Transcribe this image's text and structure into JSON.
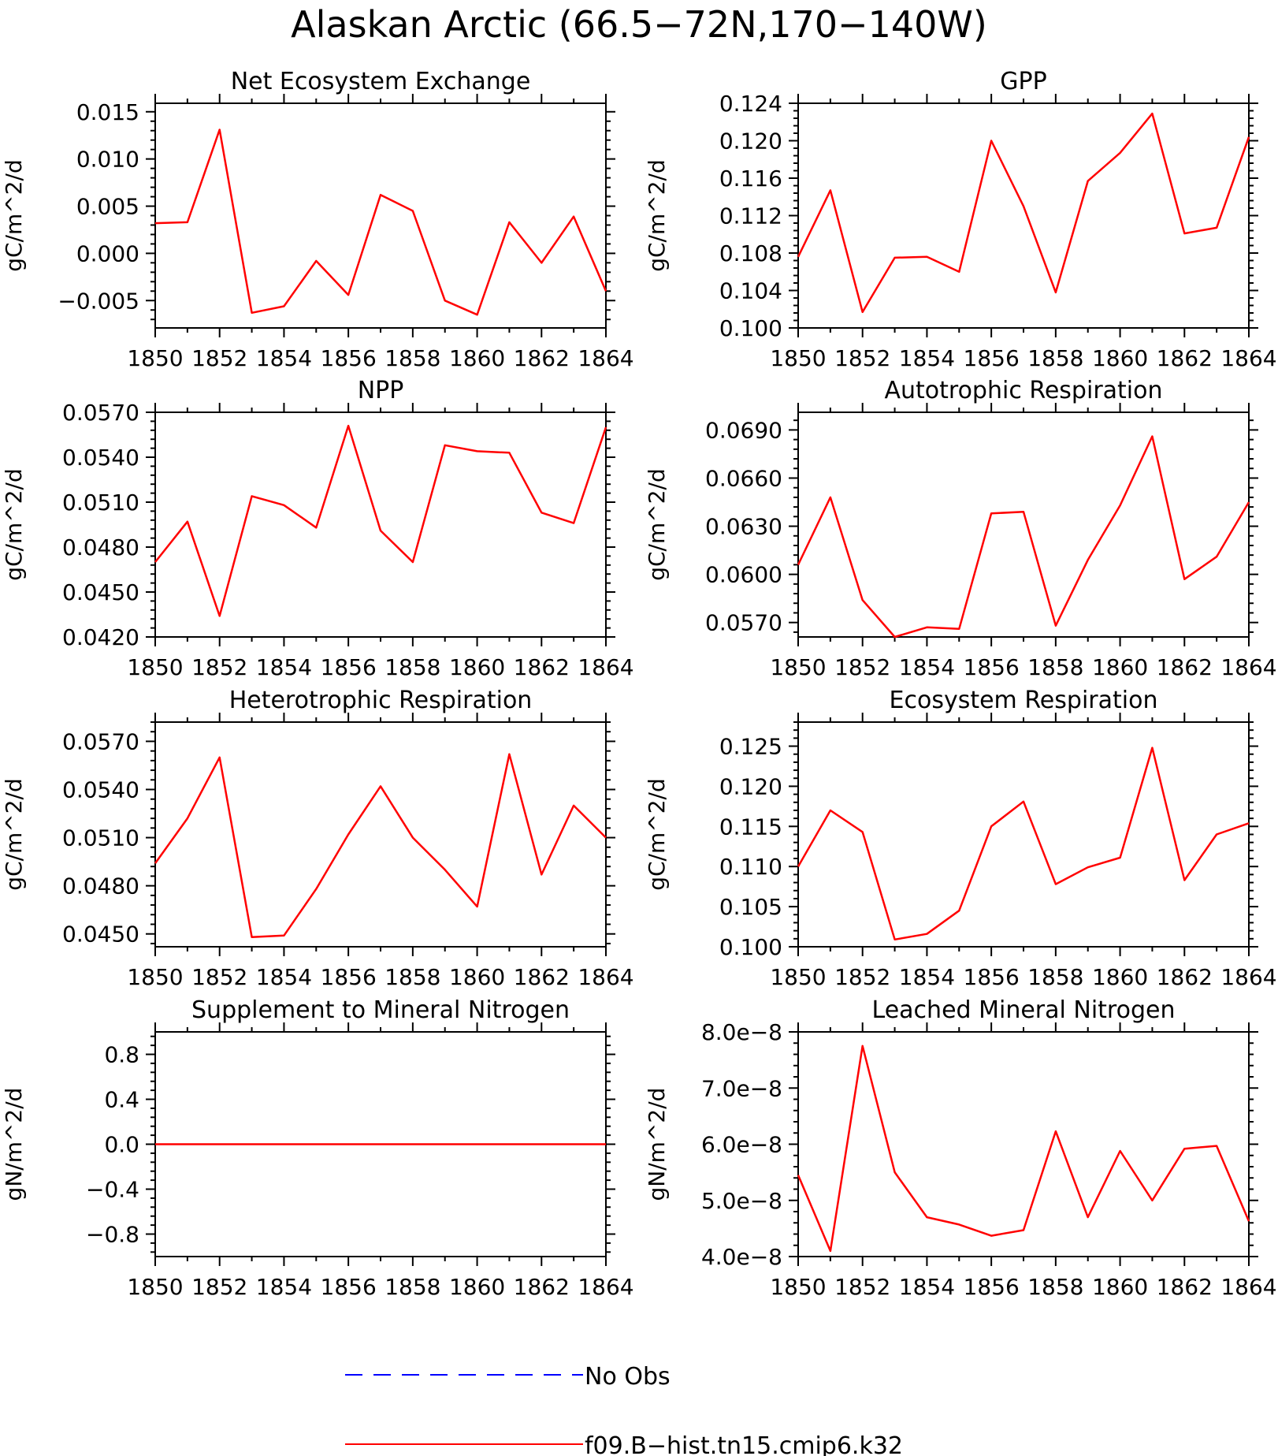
{
  "figure": {
    "title": "Alaskan Arctic (66.5−72N,170−140W)"
  },
  "legend": {
    "entries": [
      {
        "label": "No Obs",
        "color": "#0000ff",
        "dash": true
      },
      {
        "label": "f09.B−hist.tn15.cmip6.k32",
        "color": "#ff0000",
        "dash": false
      }
    ]
  },
  "series_color": "#ff0000",
  "chart_data": [
    {
      "type": "line",
      "title": "Net Ecosystem Exchange",
      "ylabel": "gC/m^2/d",
      "x": [
        1850,
        1851,
        1852,
        1853,
        1854,
        1855,
        1856,
        1857,
        1858,
        1859,
        1860,
        1861,
        1862,
        1863,
        1864
      ],
      "values": [
        0.0032,
        0.0033,
        0.0131,
        -0.0063,
        -0.0056,
        -0.0008,
        -0.0044,
        0.0062,
        0.0045,
        -0.005,
        -0.0065,
        0.0033,
        -0.001,
        0.0039,
        -0.004
      ],
      "xlim": [
        1850,
        1864
      ],
      "ylim": [
        -0.0079,
        0.0159
      ],
      "yticks": [
        -0.005,
        0.0,
        0.005,
        0.01,
        0.015
      ],
      "ytick_labels": [
        "−0.005",
        "0.000",
        "0.005",
        "0.010",
        "0.015"
      ],
      "xticks": [
        1850,
        1852,
        1854,
        1856,
        1858,
        1860,
        1862,
        1864
      ],
      "xtick_labels": [
        "1850",
        "1852",
        "1854",
        "1856",
        "1858",
        "1860",
        "1862",
        "1864"
      ]
    },
    {
      "type": "line",
      "title": "GPP",
      "ylabel": "gC/m^2/d",
      "x": [
        1850,
        1851,
        1852,
        1853,
        1854,
        1855,
        1856,
        1857,
        1858,
        1859,
        1860,
        1861,
        1862,
        1863,
        1864
      ],
      "values": [
        0.1076,
        0.1147,
        0.1017,
        0.1075,
        0.1076,
        0.106,
        0.12,
        0.113,
        0.1038,
        0.1157,
        0.1187,
        0.1229,
        0.1101,
        0.1107,
        0.1204
      ],
      "xlim": [
        1850,
        1864
      ],
      "ylim": [
        0.1,
        0.124
      ],
      "yticks": [
        0.1,
        0.104,
        0.108,
        0.112,
        0.116,
        0.12,
        0.124
      ],
      "ytick_labels": [
        "0.100",
        "0.104",
        "0.108",
        "0.112",
        "0.116",
        "0.120",
        "0.124"
      ],
      "xticks": [
        1850,
        1852,
        1854,
        1856,
        1858,
        1860,
        1862,
        1864
      ],
      "xtick_labels": [
        "1850",
        "1852",
        "1854",
        "1856",
        "1858",
        "1860",
        "1862",
        "1864"
      ]
    },
    {
      "type": "line",
      "title": "NPP",
      "ylabel": "gC/m^2/d",
      "x": [
        1850,
        1851,
        1852,
        1853,
        1854,
        1855,
        1856,
        1857,
        1858,
        1859,
        1860,
        1861,
        1862,
        1863,
        1864
      ],
      "values": [
        0.047,
        0.0497,
        0.0434,
        0.0514,
        0.0508,
        0.0493,
        0.0561,
        0.0491,
        0.047,
        0.0548,
        0.0544,
        0.0543,
        0.0503,
        0.0496,
        0.056
      ],
      "xlim": [
        1850,
        1864
      ],
      "ylim": [
        0.042,
        0.057
      ],
      "yticks": [
        0.042,
        0.045,
        0.048,
        0.051,
        0.054,
        0.057
      ],
      "ytick_labels": [
        "0.0420",
        "0.0450",
        "0.0480",
        "0.0510",
        "0.0540",
        "0.0570"
      ],
      "xticks": [
        1850,
        1852,
        1854,
        1856,
        1858,
        1860,
        1862,
        1864
      ],
      "xtick_labels": [
        "1850",
        "1852",
        "1854",
        "1856",
        "1858",
        "1860",
        "1862",
        "1864"
      ]
    },
    {
      "type": "line",
      "title": "Autotrophic Respiration",
      "ylabel": "gC/m^2/d",
      "x": [
        1850,
        1851,
        1852,
        1853,
        1854,
        1855,
        1856,
        1857,
        1858,
        1859,
        1860,
        1861,
        1862,
        1863,
        1864
      ],
      "values": [
        0.0606,
        0.0648,
        0.0584,
        0.0561,
        0.0567,
        0.0566,
        0.0638,
        0.0639,
        0.0568,
        0.0609,
        0.0643,
        0.0686,
        0.0597,
        0.0611,
        0.0645
      ],
      "xlim": [
        1850,
        1864
      ],
      "ylim": [
        0.0561,
        0.0701
      ],
      "yticks": [
        0.057,
        0.06,
        0.063,
        0.066,
        0.069
      ],
      "ytick_labels": [
        "0.0570",
        "0.0600",
        "0.0630",
        "0.0660",
        "0.0690"
      ],
      "xticks": [
        1850,
        1852,
        1854,
        1856,
        1858,
        1860,
        1862,
        1864
      ],
      "xtick_labels": [
        "1850",
        "1852",
        "1854",
        "1856",
        "1858",
        "1860",
        "1862",
        "1864"
      ]
    },
    {
      "type": "line",
      "title": "Heterotrophic Respiration",
      "ylabel": "gC/m^2/d",
      "x": [
        1850,
        1851,
        1852,
        1853,
        1854,
        1855,
        1856,
        1857,
        1858,
        1859,
        1860,
        1861,
        1862,
        1863,
        1864
      ],
      "values": [
        0.0494,
        0.0522,
        0.056,
        0.0448,
        0.0449,
        0.0478,
        0.0512,
        0.0542,
        0.051,
        0.049,
        0.0467,
        0.0562,
        0.0487,
        0.053,
        0.051
      ],
      "xlim": [
        1850,
        1864
      ],
      "ylim": [
        0.0442,
        0.0582
      ],
      "yticks": [
        0.045,
        0.048,
        0.051,
        0.054,
        0.057
      ],
      "ytick_labels": [
        "0.0450",
        "0.0480",
        "0.0510",
        "0.0540",
        "0.0570"
      ],
      "xticks": [
        1850,
        1852,
        1854,
        1856,
        1858,
        1860,
        1862,
        1864
      ],
      "xtick_labels": [
        "1850",
        "1852",
        "1854",
        "1856",
        "1858",
        "1860",
        "1862",
        "1864"
      ]
    },
    {
      "type": "line",
      "title": "Ecosystem Respiration",
      "ylabel": "gC/m^2/d",
      "x": [
        1850,
        1851,
        1852,
        1853,
        1854,
        1855,
        1856,
        1857,
        1858,
        1859,
        1860,
        1861,
        1862,
        1863,
        1864
      ],
      "values": [
        0.11,
        0.117,
        0.1143,
        0.1009,
        0.1016,
        0.1045,
        0.115,
        0.1181,
        0.1078,
        0.1099,
        0.1111,
        0.1248,
        0.1083,
        0.114,
        0.1154
      ],
      "xlim": [
        1850,
        1864
      ],
      "ylim": [
        0.1,
        0.128
      ],
      "yticks": [
        0.1,
        0.105,
        0.11,
        0.115,
        0.12,
        0.125
      ],
      "ytick_labels": [
        "0.100",
        "0.105",
        "0.110",
        "0.115",
        "0.120",
        "0.125"
      ],
      "xticks": [
        1850,
        1852,
        1854,
        1856,
        1858,
        1860,
        1862,
        1864
      ],
      "xtick_labels": [
        "1850",
        "1852",
        "1854",
        "1856",
        "1858",
        "1860",
        "1862",
        "1864"
      ]
    },
    {
      "type": "line",
      "title": "Supplement to Mineral Nitrogen",
      "ylabel": "gN/m^2/d",
      "x": [
        1850,
        1851,
        1852,
        1853,
        1854,
        1855,
        1856,
        1857,
        1858,
        1859,
        1860,
        1861,
        1862,
        1863,
        1864
      ],
      "values": [
        0,
        0,
        0,
        0,
        0,
        0,
        0,
        0,
        0,
        0,
        0,
        0,
        0,
        0,
        0
      ],
      "xlim": [
        1850,
        1864
      ],
      "ylim": [
        -1.0,
        1.0
      ],
      "yticks": [
        -0.8,
        -0.4,
        0.0,
        0.4,
        0.8
      ],
      "ytick_labels": [
        "−0.8",
        "−0.4",
        "0.0",
        "0.4",
        "0.8"
      ],
      "xticks": [
        1850,
        1852,
        1854,
        1856,
        1858,
        1860,
        1862,
        1864
      ],
      "xtick_labels": [
        "1850",
        "1852",
        "1854",
        "1856",
        "1858",
        "1860",
        "1862",
        "1864"
      ]
    },
    {
      "type": "line",
      "title": "Leached Mineral Nitrogen",
      "ylabel": "gN/m^2/d",
      "x": [
        1850,
        1851,
        1852,
        1853,
        1854,
        1855,
        1856,
        1857,
        1858,
        1859,
        1860,
        1861,
        1862,
        1863,
        1864
      ],
      "values": [
        5.45e-08,
        4.1e-08,
        7.75e-08,
        5.5e-08,
        4.7e-08,
        4.57e-08,
        4.37e-08,
        4.47e-08,
        6.23e-08,
        4.7e-08,
        5.88e-08,
        5e-08,
        5.92e-08,
        5.97e-08,
        4.63e-08
      ],
      "xlim": [
        1850,
        1864
      ],
      "ylim": [
        4e-08,
        8e-08
      ],
      "yticks": [
        4e-08,
        5e-08,
        6e-08,
        7e-08,
        8e-08
      ],
      "ytick_labels": [
        "4.0e−8",
        "5.0e−8",
        "6.0e−8",
        "7.0e−8",
        "8.0e−8"
      ],
      "xticks": [
        1850,
        1852,
        1854,
        1856,
        1858,
        1860,
        1862,
        1864
      ],
      "xtick_labels": [
        "1850",
        "1852",
        "1854",
        "1856",
        "1858",
        "1860",
        "1862",
        "1864"
      ]
    }
  ]
}
